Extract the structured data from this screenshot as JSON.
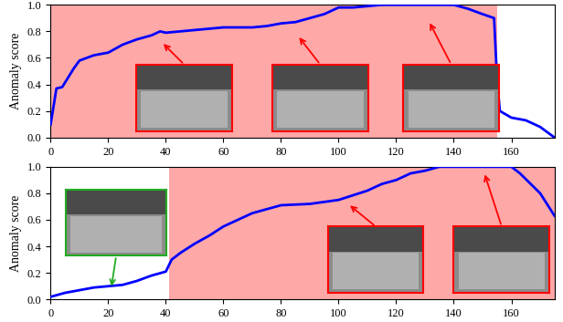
{
  "chart_data": [
    {
      "type": "line",
      "ylabel": "Anomaly score",
      "x": [
        0,
        2,
        4,
        6,
        8,
        10,
        15,
        20,
        25,
        30,
        35,
        38,
        40,
        45,
        50,
        55,
        60,
        70,
        75,
        80,
        85,
        90,
        95,
        100,
        105,
        110,
        115,
        140,
        145,
        150,
        154,
        155,
        156,
        160,
        165,
        170,
        175
      ],
      "values": [
        0.1,
        0.37,
        0.38,
        0.45,
        0.52,
        0.58,
        0.62,
        0.64,
        0.7,
        0.74,
        0.77,
        0.8,
        0.79,
        0.8,
        0.81,
        0.82,
        0.83,
        0.83,
        0.84,
        0.86,
        0.87,
        0.9,
        0.93,
        0.98,
        0.98,
        0.99,
        1.0,
        1.0,
        0.97,
        0.93,
        0.9,
        0.45,
        0.2,
        0.15,
        0.13,
        0.08,
        0.0
      ],
      "color": "#0000ff",
      "anomaly_range": [
        0,
        155
      ],
      "xlim": [
        0,
        175
      ],
      "ylim": [
        0,
        1
      ],
      "xticks": [
        0,
        20,
        40,
        60,
        80,
        100,
        120,
        140,
        160
      ],
      "yticks": [
        {
          "value": 0,
          "label": "0.0"
        },
        0.2,
        0.4,
        0.6,
        0.8,
        {
          "value": 1,
          "label": "1.0"
        }
      ]
    },
    {
      "type": "line",
      "ylabel": "Anomaly score",
      "x": [
        0,
        5,
        10,
        15,
        20,
        25,
        30,
        35,
        40,
        42,
        45,
        50,
        55,
        60,
        65,
        70,
        75,
        80,
        90,
        100,
        110,
        115,
        120,
        125,
        130,
        135,
        160,
        163,
        170,
        175
      ],
      "values": [
        0.02,
        0.05,
        0.07,
        0.09,
        0.1,
        0.11,
        0.14,
        0.18,
        0.21,
        0.3,
        0.35,
        0.42,
        0.48,
        0.55,
        0.6,
        0.65,
        0.68,
        0.71,
        0.72,
        0.75,
        0.82,
        0.87,
        0.9,
        0.95,
        0.97,
        1.0,
        1.0,
        0.95,
        0.8,
        0.63
      ],
      "color": "#0000ff",
      "anomaly_range": [
        41,
        175
      ],
      "xlim": [
        0,
        175
      ],
      "ylim": [
        0,
        1
      ],
      "xticks": [
        0,
        20,
        40,
        60,
        80,
        100,
        120,
        140,
        160
      ],
      "yticks": [
        {
          "value": 0,
          "label": "0.0"
        },
        0.2,
        0.4,
        0.6,
        0.8,
        {
          "value": 1,
          "label": "1.0"
        }
      ]
    }
  ]
}
